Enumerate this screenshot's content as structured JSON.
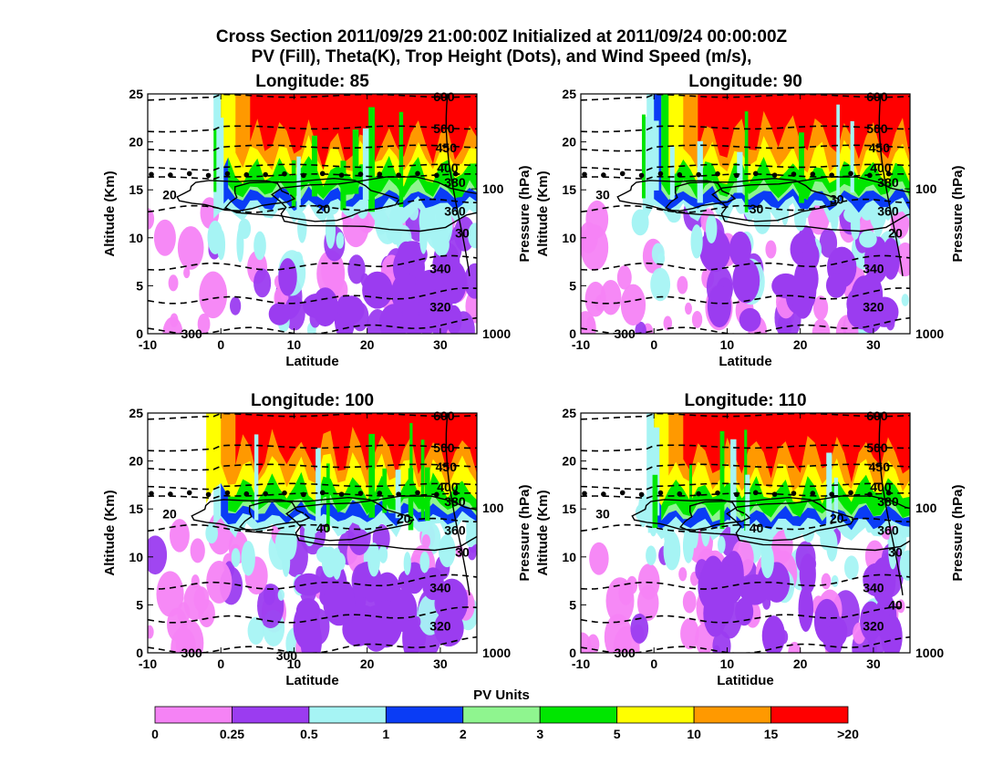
{
  "figure": {
    "title_line1": "Cross Section 2011/09/29 21:00:00Z Initialized at 2011/09/24 00:00:00Z",
    "title_line2": "PV (Fill), Theta(K), Trop Height (Dots), and Wind Speed (m/s),"
  },
  "colors": {
    "pv_bins": [
      "#f583f5",
      "#9b3cf0",
      "#a6f4f4",
      "#0a3cf5",
      "#8ff58f",
      "#00e600",
      "#ffff00",
      "#ff9900",
      "#ff0000"
    ]
  },
  "chart_data": [
    {
      "type": "contour-cross-section",
      "title": "Longitude:  85",
      "xlabel": "Latitude",
      "ylabel": "Altitude (Km)",
      "y2label": "Pressure (hPa)",
      "xlim": [
        -10,
        35
      ],
      "ylim": [
        0,
        25
      ],
      "x_ticks": [
        "-10",
        "0",
        "10",
        "20",
        "30"
      ],
      "y_ticks": [
        "0",
        "5",
        "10",
        "15",
        "20",
        "25"
      ],
      "pressure_ticks": [
        {
          "label": "1000",
          "km": 0
        },
        {
          "label": "100",
          "km": 15.1
        }
      ],
      "theta_labels": [
        "600",
        "500",
        "450",
        "400",
        "380",
        "360",
        "340",
        "320",
        "300"
      ],
      "theta_levels": [
        {
          "label": "300",
          "km": 0.3
        },
        {
          "label": "320",
          "km": 3.5
        },
        {
          "label": "340",
          "km": 7
        },
        {
          "label": "360",
          "km": 13
        },
        {
          "label": "380",
          "km": 16.5
        },
        {
          "label": "400",
          "km": 17.5
        },
        {
          "label": "450",
          "km": 19.5
        },
        {
          "label": "500",
          "km": 21.5
        },
        {
          "label": "600",
          "km": 24.8
        }
      ],
      "wind_labels": [
        "20",
        "20",
        "30"
      ],
      "tropopause_km": 16.6,
      "pv_top_layers": {
        "red_start_lat": 4,
        "red_base_km": 20,
        "orange_base_km": 18.5,
        "yellow_base_km": 17,
        "green_base_km": 15,
        "blue_base_km": 13.5
      }
    },
    {
      "type": "contour-cross-section",
      "title": "Longitude:  90",
      "xlabel": "Latitude",
      "ylabel": "Altitude (Km)",
      "y2label": "Pressure (hPa)",
      "xlim": [
        -10,
        35
      ],
      "ylim": [
        0,
        25
      ],
      "x_ticks": [
        "-10",
        "0",
        "10",
        "20",
        "30"
      ],
      "y_ticks": [
        "0",
        "5",
        "10",
        "15",
        "20",
        "25"
      ],
      "pressure_ticks": [
        {
          "label": "1000",
          "km": 0
        },
        {
          "label": "100",
          "km": 15.1
        }
      ],
      "theta_labels": [
        "600",
        "500",
        "450",
        "400",
        "380",
        "360",
        "340",
        "320",
        "300"
      ],
      "theta_levels": [
        {
          "label": "300",
          "km": 0.3
        },
        {
          "label": "320",
          "km": 3.5
        },
        {
          "label": "340",
          "km": 7
        },
        {
          "label": "360",
          "km": 13
        },
        {
          "label": "380",
          "km": 16.5
        },
        {
          "label": "400",
          "km": 17.5
        },
        {
          "label": "450",
          "km": 19.5
        },
        {
          "label": "500",
          "km": 21.5
        },
        {
          "label": "600",
          "km": 24.8
        }
      ],
      "wind_labels": [
        "30",
        "30",
        "20",
        "30"
      ],
      "tropopause_km": 16.6,
      "pv_top_layers": {
        "red_start_lat": 6,
        "red_base_km": 20.5,
        "orange_base_km": 18.5,
        "yellow_base_km": 17,
        "green_base_km": 15,
        "blue_base_km": 13.5
      }
    },
    {
      "type": "contour-cross-section",
      "title": "Longitude:  100",
      "xlabel": "Latitude",
      "ylabel": "Altitude (Km)",
      "y2label": "Pressure (hPa)",
      "xlim": [
        -10,
        35
      ],
      "ylim": [
        0,
        25
      ],
      "x_ticks": [
        "-10",
        "0",
        "10",
        "20",
        "30"
      ],
      "y_ticks": [
        "0",
        "5",
        "10",
        "15",
        "20",
        "25"
      ],
      "pressure_ticks": [
        {
          "label": "1000",
          "km": 0
        },
        {
          "label": "100",
          "km": 15.1
        }
      ],
      "theta_labels": [
        "600",
        "500",
        "450",
        "400",
        "380",
        "360",
        "340",
        "320",
        "300",
        "300"
      ],
      "theta_levels": [
        {
          "label": "300",
          "km": 0.3
        },
        {
          "label": "320",
          "km": 3.5
        },
        {
          "label": "340",
          "km": 7
        },
        {
          "label": "360",
          "km": 13
        },
        {
          "label": "380",
          "km": 16.5
        },
        {
          "label": "400",
          "km": 17.5
        },
        {
          "label": "450",
          "km": 19.5
        },
        {
          "label": "500",
          "km": 21.5
        },
        {
          "label": "600",
          "km": 24.8
        }
      ],
      "wind_labels": [
        "20",
        "40",
        "30",
        "20"
      ],
      "tropopause_km": 16.6,
      "pv_top_layers": {
        "red_start_lat": 2,
        "red_base_km": 21,
        "orange_base_km": 19,
        "yellow_base_km": 17.2,
        "green_base_km": 15.5,
        "blue_base_km": 14
      }
    },
    {
      "type": "contour-cross-section",
      "title": "Longitude:  110",
      "xlabel": "Latitidue",
      "ylabel": "Altitude (Km)",
      "y2label": "Pressure (hPa)",
      "xlim": [
        -10,
        35
      ],
      "ylim": [
        0,
        25
      ],
      "x_ticks": [
        "-10",
        "0",
        "10",
        "20",
        "30"
      ],
      "y_ticks": [
        "0",
        "5",
        "10",
        "15",
        "20",
        "25"
      ],
      "pressure_ticks": [
        {
          "label": "1000",
          "km": 0
        },
        {
          "label": "100",
          "km": 15.1
        }
      ],
      "theta_labels": [
        "600",
        "500",
        "450",
        "400",
        "380",
        "360",
        "340",
        "320",
        "300"
      ],
      "theta_levels": [
        {
          "label": "300",
          "km": 0.3
        },
        {
          "label": "320",
          "km": 3.5
        },
        {
          "label": "340",
          "km": 7
        },
        {
          "label": "360",
          "km": 13
        },
        {
          "label": "380",
          "km": 16.5
        },
        {
          "label": "400",
          "km": 17.5
        },
        {
          "label": "450",
          "km": 19.5
        },
        {
          "label": "500",
          "km": 21.5
        },
        {
          "label": "600",
          "km": 24.8
        }
      ],
      "wind_labels": [
        "30",
        "40",
        "30",
        "20",
        "40"
      ],
      "tropopause_km": 16.6,
      "pv_top_layers": {
        "red_start_lat": 4,
        "red_base_km": 20.5,
        "orange_base_km": 18.5,
        "yellow_base_km": 17,
        "green_base_km": 15,
        "blue_base_km": 13.5
      }
    }
  ],
  "legend": {
    "title": "PV Units",
    "labels": [
      "0",
      "0.25",
      "0.5",
      "1",
      "2",
      "3",
      "5",
      "10",
      "15",
      ">20"
    ]
  }
}
